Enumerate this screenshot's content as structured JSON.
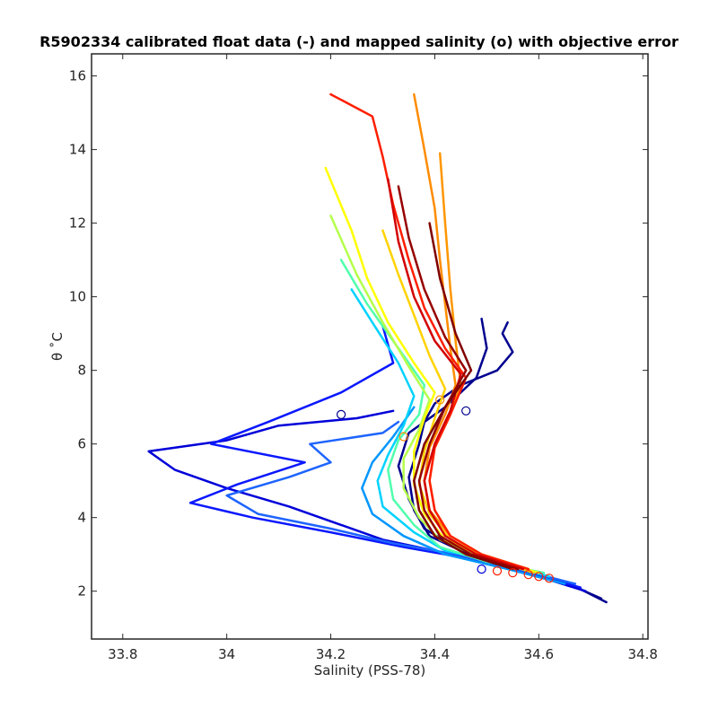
{
  "chart_data": {
    "type": "line",
    "title": "R5902334 calibrated float data (-) and mapped salinity (o) with objective error",
    "xlabel": "Salinity (PSS-78)",
    "ylabel": "θ ˚C",
    "xlim": [
      33.74,
      34.81
    ],
    "ylim": [
      0.7,
      16.6
    ],
    "xticks": [
      33.8,
      34,
      34.2,
      34.4,
      34.6,
      34.8
    ],
    "xtick_labels": [
      "33.8",
      "34",
      "34.2",
      "34.4",
      "34.6",
      "34.8"
    ],
    "yticks": [
      2,
      4,
      6,
      8,
      10,
      12,
      14,
      16
    ],
    "ytick_labels": [
      "2",
      "4",
      "6",
      "8",
      "10",
      "12",
      "14",
      "16"
    ],
    "grid": false,
    "legend": "none",
    "colormap": "jet (profile number)",
    "series": [
      {
        "color": "#00008f",
        "x": [
          34.73,
          34.66,
          34.58,
          34.5,
          34.45,
          34.39,
          34.36,
          34.35,
          34.37,
          34.38,
          34.4,
          34.45,
          34.52,
          34.55,
          34.53,
          34.54
        ],
        "y": [
          1.7,
          2.2,
          2.5,
          2.8,
          3.1,
          3.5,
          4.2,
          5.1,
          6.0,
          6.6,
          7.1,
          7.6,
          8.0,
          8.5,
          9.0,
          9.3
        ]
      },
      {
        "color": "#00008f",
        "x": [
          34.72,
          34.64,
          34.56,
          34.49,
          34.44,
          34.38,
          34.35,
          34.33,
          34.35,
          34.42,
          34.48,
          34.5,
          34.49
        ],
        "y": [
          1.8,
          2.3,
          2.6,
          2.9,
          3.2,
          3.7,
          4.5,
          5.4,
          6.3,
          7.0,
          7.8,
          8.6,
          9.4
        ]
      },
      {
        "color": "#0000d9",
        "x": [
          34.69,
          34.6,
          34.5,
          34.4,
          34.3,
          34.22,
          34.12,
          34.0,
          33.9,
          33.85,
          34.0,
          34.1,
          34.25,
          34.32
        ],
        "y": [
          2.0,
          2.4,
          2.8,
          3.1,
          3.4,
          3.8,
          4.3,
          4.8,
          5.3,
          5.8,
          6.1,
          6.5,
          6.7,
          6.9
        ]
      },
      {
        "color": "#0a18ff",
        "x": [
          34.68,
          34.58,
          34.46,
          34.34,
          34.2,
          34.05,
          33.93,
          34.02,
          34.15,
          33.97,
          34.08,
          34.22,
          34.32,
          34.3
        ],
        "y": [
          2.1,
          2.5,
          2.9,
          3.2,
          3.6,
          4.0,
          4.4,
          4.9,
          5.5,
          6.0,
          6.6,
          7.4,
          8.2,
          9.2
        ]
      },
      {
        "color": "#1e64ff",
        "x": [
          34.67,
          34.56,
          34.44,
          34.32,
          34.2,
          34.06,
          34.0,
          34.12,
          34.2,
          34.16,
          34.3,
          34.33
        ],
        "y": [
          2.2,
          2.6,
          3.0,
          3.3,
          3.7,
          4.1,
          4.6,
          5.1,
          5.5,
          6.0,
          6.3,
          6.6
        ]
      },
      {
        "color": "#0096ff",
        "x": [
          34.65,
          34.54,
          34.42,
          34.34,
          34.28,
          34.26,
          34.28,
          34.32,
          34.36
        ],
        "y": [
          2.2,
          2.6,
          3.0,
          3.5,
          4.1,
          4.8,
          5.5,
          6.2,
          7.0
        ]
      },
      {
        "color": "#00d2ff",
        "x": [
          34.62,
          34.52,
          34.42,
          34.36,
          34.3,
          34.29,
          34.31,
          34.34,
          34.36,
          34.33,
          34.28,
          34.24
        ],
        "y": [
          2.4,
          2.8,
          3.1,
          3.6,
          4.3,
          5.0,
          5.7,
          6.5,
          7.3,
          8.2,
          9.3,
          10.2
        ]
      },
      {
        "color": "#50ffad",
        "x": [
          34.61,
          34.5,
          34.41,
          34.36,
          34.32,
          34.31,
          34.33,
          34.37,
          34.38,
          34.33,
          34.27,
          34.22
        ],
        "y": [
          2.5,
          2.8,
          3.2,
          3.8,
          4.5,
          5.3,
          6.1,
          6.8,
          7.6,
          8.6,
          9.8,
          11.0
        ]
      },
      {
        "color": "#b4ff4b",
        "x": [
          34.6,
          34.49,
          34.41,
          34.37,
          34.34,
          34.34,
          34.37,
          34.39,
          34.35,
          34.3,
          34.25,
          34.2
        ],
        "y": [
          2.5,
          2.9,
          3.4,
          4.0,
          4.8,
          5.6,
          6.4,
          7.2,
          8.1,
          9.3,
          10.6,
          12.2
        ]
      },
      {
        "color": "#ffff00",
        "x": [
          34.6,
          34.5,
          34.42,
          34.38,
          34.36,
          34.36,
          34.38,
          34.4,
          34.36,
          34.31,
          34.27,
          34.24,
          34.19
        ],
        "y": [
          2.5,
          2.9,
          3.4,
          4.1,
          4.9,
          5.8,
          6.7,
          7.4,
          8.2,
          9.3,
          10.5,
          11.8,
          13.5
        ]
      },
      {
        "color": "#ffd200",
        "x": [
          34.59,
          34.5,
          34.43,
          34.39,
          34.37,
          34.38,
          34.4,
          34.42,
          34.39,
          34.36,
          34.33,
          34.3
        ],
        "y": [
          2.5,
          2.9,
          3.4,
          4.1,
          4.9,
          5.8,
          6.7,
          7.5,
          8.4,
          9.5,
          10.6,
          11.8
        ]
      },
      {
        "color": "#ff8c00",
        "x": [
          34.58,
          34.49,
          34.43,
          34.39,
          34.38,
          34.39,
          34.42,
          34.44,
          34.43,
          34.42,
          34.41,
          34.4,
          34.38,
          34.36
        ],
        "y": [
          2.6,
          3.0,
          3.5,
          4.2,
          5.0,
          5.9,
          6.8,
          7.6,
          8.6,
          9.8,
          11.0,
          12.4,
          14.0,
          15.5
        ]
      },
      {
        "color": "#ff9600",
        "x": [
          34.58,
          34.49,
          34.43,
          34.4,
          34.39,
          34.4,
          34.43,
          34.45,
          34.44,
          34.43,
          34.42,
          34.41
        ],
        "y": [
          2.6,
          3.0,
          3.5,
          4.2,
          5.0,
          5.9,
          6.8,
          7.6,
          8.8,
          10.2,
          12.0,
          13.9
        ]
      },
      {
        "color": "#ff1e00",
        "x": [
          34.58,
          34.49,
          34.43,
          34.4,
          34.39,
          34.4,
          34.43,
          34.46,
          34.42,
          34.38,
          34.35,
          34.32,
          34.3,
          34.28,
          34.2
        ],
        "y": [
          2.6,
          3.0,
          3.5,
          4.2,
          5.0,
          5.9,
          6.8,
          7.8,
          8.6,
          9.7,
          11.0,
          12.5,
          13.8,
          14.9,
          15.5
        ]
      },
      {
        "color": "#d20000",
        "x": [
          34.57,
          34.48,
          34.42,
          34.39,
          34.38,
          34.4,
          34.43,
          34.45,
          34.4,
          34.36,
          34.33,
          34.31
        ],
        "y": [
          2.6,
          3.0,
          3.5,
          4.2,
          5.0,
          6.0,
          6.9,
          7.9,
          8.8,
          10.0,
          11.5,
          13.2
        ]
      },
      {
        "color": "#960000",
        "x": [
          34.56,
          34.47,
          34.41,
          34.38,
          34.37,
          34.39,
          34.42,
          34.46,
          34.42,
          34.38,
          34.35,
          34.33
        ],
        "y": [
          2.6,
          3.0,
          3.5,
          4.2,
          5.0,
          6.0,
          7.0,
          8.0,
          8.9,
          10.2,
          11.6,
          13.0
        ]
      },
      {
        "color": "#800000",
        "x": [
          34.55,
          34.46,
          34.4,
          34.37,
          34.36,
          34.38,
          34.42,
          34.47,
          34.44,
          34.41,
          34.39
        ],
        "y": [
          2.6,
          3.0,
          3.5,
          4.2,
          5.0,
          6.0,
          7.0,
          8.0,
          9.0,
          10.5,
          12.0
        ]
      }
    ],
    "mapped_points": {
      "marker": "o",
      "x": [
        34.52,
        34.55,
        34.58,
        34.6,
        34.62,
        34.49,
        34.46,
        34.41,
        34.34,
        34.22
      ],
      "y": [
        2.55,
        2.5,
        2.45,
        2.4,
        2.35,
        2.6,
        6.9,
        7.2,
        6.2,
        6.8
      ],
      "color": [
        "#ff1e00",
        "#ff1e00",
        "#ff1e00",
        "#ff1e00",
        "#ff1e00",
        "#0000d9",
        "#00008f",
        "#ff8c00",
        "#ff8c00",
        "#00008f"
      ]
    }
  }
}
